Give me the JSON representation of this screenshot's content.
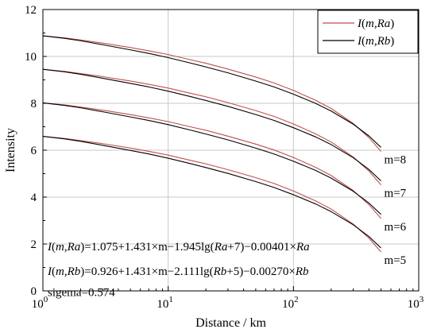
{
  "chart_data": {
    "type": "line",
    "title": "",
    "xlabel": "Distance / km",
    "ylabel": "Intensity",
    "xscale": "log",
    "xlim": [
      1,
      1000
    ],
    "ylim": [
      0,
      12
    ],
    "grid": true,
    "legend_position": "top-right",
    "x_ticks": [
      {
        "value": 1,
        "base": "10",
        "exp": "0"
      },
      {
        "value": 10,
        "base": "10",
        "exp": "1"
      },
      {
        "value": 100,
        "base": "10",
        "exp": "2"
      },
      {
        "value": 1000,
        "base": "10",
        "exp": "3"
      }
    ],
    "y_ticks": [
      {
        "value": 0,
        "label": "0"
      },
      {
        "value": 2,
        "label": "2"
      },
      {
        "value": 4,
        "label": "4"
      },
      {
        "value": 6,
        "label": "6"
      },
      {
        "value": 8,
        "label": "8"
      },
      {
        "value": 10,
        "label": "10"
      },
      {
        "value": 12,
        "label": "12"
      }
    ],
    "series_styles": [
      {
        "legend_id": "Ra",
        "color": "#c0504d"
      },
      {
        "legend_id": "Rb",
        "color": "#000000"
      }
    ],
    "legend": [
      {
        "id": "Ra",
        "func": "I",
        "args": "m,Ra",
        "color": "#c0504d"
      },
      {
        "id": "Rb",
        "func": "I",
        "args": "m,Rb",
        "color": "#000000"
      }
    ],
    "m_values": [
      5,
      6,
      7,
      8
    ],
    "curve_labels": [
      {
        "m": 8,
        "text": "m=8"
      },
      {
        "m": 7,
        "text": "m=7"
      },
      {
        "m": 6,
        "text": "m=6"
      },
      {
        "m": 5,
        "text": "m=5"
      }
    ],
    "x": [
      1,
      1.5,
      2,
      3,
      5,
      7,
      10,
      15,
      20,
      30,
      50,
      70,
      100,
      150,
      200,
      300,
      400,
      500
    ],
    "series": [
      {
        "legend_id": "Ra",
        "m": 5,
        "values": [
          6.59,
          6.5,
          6.41,
          6.28,
          6.09,
          5.95,
          5.79,
          5.57,
          5.42,
          5.17,
          4.83,
          4.58,
          4.26,
          3.84,
          3.49,
          2.85,
          2.25,
          1.66
        ]
      },
      {
        "legend_id": "Rb",
        "m": 5,
        "values": [
          6.59,
          6.48,
          6.38,
          6.21,
          5.99,
          5.84,
          5.66,
          5.43,
          5.26,
          5.01,
          4.66,
          4.41,
          4.1,
          3.71,
          3.38,
          2.82,
          2.32,
          1.83
        ]
      },
      {
        "legend_id": "Ra",
        "m": 6,
        "values": [
          8.02,
          7.93,
          7.84,
          7.71,
          7.52,
          7.38,
          7.22,
          7.0,
          6.85,
          6.6,
          6.26,
          6.01,
          5.69,
          5.27,
          4.92,
          4.28,
          3.68,
          3.09
        ]
      },
      {
        "legend_id": "Rb",
        "m": 6,
        "values": [
          8.02,
          7.91,
          7.81,
          7.64,
          7.42,
          7.27,
          7.09,
          6.86,
          6.69,
          6.44,
          6.09,
          5.84,
          5.53,
          5.14,
          4.81,
          4.25,
          3.75,
          3.26
        ]
      },
      {
        "legend_id": "Ra",
        "m": 7,
        "values": [
          9.45,
          9.36,
          9.27,
          9.14,
          8.95,
          8.81,
          8.65,
          8.43,
          8.28,
          8.03,
          7.69,
          7.44,
          7.12,
          6.7,
          6.35,
          5.71,
          5.11,
          4.52
        ]
      },
      {
        "legend_id": "Rb",
        "m": 7,
        "values": [
          9.45,
          9.34,
          9.24,
          9.07,
          8.85,
          8.7,
          8.52,
          8.29,
          8.12,
          7.87,
          7.52,
          7.27,
          6.96,
          6.57,
          6.24,
          5.68,
          5.18,
          4.69
        ]
      },
      {
        "legend_id": "Ra",
        "m": 8,
        "values": [
          10.88,
          10.79,
          10.7,
          10.57,
          10.38,
          10.24,
          10.08,
          9.86,
          9.71,
          9.46,
          9.12,
          8.87,
          8.55,
          8.13,
          7.78,
          7.14,
          6.54,
          5.95
        ]
      },
      {
        "legend_id": "Rb",
        "m": 8,
        "values": [
          10.88,
          10.77,
          10.67,
          10.5,
          10.28,
          10.13,
          9.95,
          9.72,
          9.55,
          9.3,
          8.95,
          8.7,
          8.39,
          8.0,
          7.67,
          7.11,
          6.61,
          6.12
        ]
      }
    ],
    "annotations": [
      {
        "id": "formula-ra",
        "parts": [
          {
            "t": "I",
            "i": true
          },
          {
            "t": "("
          },
          {
            "t": "m",
            "i": true
          },
          {
            "t": ","
          },
          {
            "t": "Ra",
            "i": true
          },
          {
            "t": ")=1.075+1.431×m−1.945lg("
          },
          {
            "t": "Ra",
            "i": true
          },
          {
            "t": "+7)−0.00401×"
          },
          {
            "t": "Ra",
            "i": true
          }
        ]
      },
      {
        "id": "formula-rb",
        "parts": [
          {
            "t": "I",
            "i": true
          },
          {
            "t": "("
          },
          {
            "t": "m",
            "i": true
          },
          {
            "t": ","
          },
          {
            "t": "Rb",
            "i": true
          },
          {
            "t": ")=0.926+1.431×m−2.111lg("
          },
          {
            "t": "Rb",
            "i": true
          },
          {
            "t": "+5)−0.00270×"
          },
          {
            "t": "Rb",
            "i": true
          }
        ]
      },
      {
        "id": "sigema",
        "parts": [
          {
            "t": "sigema=0.574"
          }
        ]
      }
    ]
  }
}
